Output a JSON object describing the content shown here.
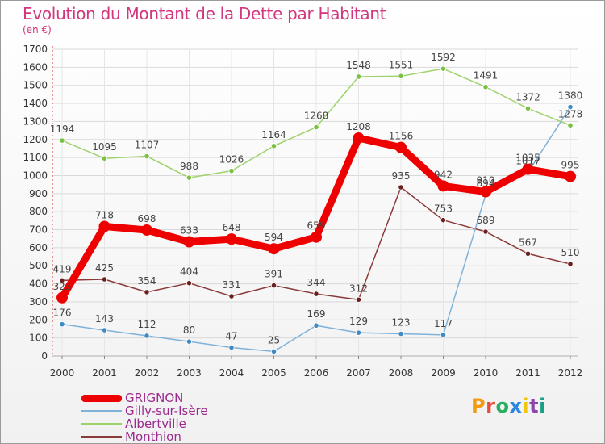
{
  "title": "Evolution du Montant de la Dette par Habitant",
  "unit": "(en €)",
  "logo": "Proxiti",
  "colors": {
    "title": "#d2367e",
    "legend_text": "#9b2b8f",
    "grid": "#d9d9d9",
    "axis_left": "#d8312f",
    "tick_text": "#333333",
    "value_text": "#444444"
  },
  "chart_data": {
    "type": "line",
    "title": "Evolution du Montant de la Dette par Habitant",
    "xlabel": "",
    "ylabel": "(en €)",
    "ylim": [
      0,
      1700
    ],
    "yticks": [
      0,
      100,
      200,
      300,
      400,
      500,
      600,
      700,
      800,
      900,
      1000,
      1100,
      1200,
      1300,
      1400,
      1500,
      1600,
      1700
    ],
    "grid": true,
    "legend_position": "bottom-left",
    "categories": [
      "2000",
      "2001",
      "2002",
      "2003",
      "2004",
      "2005",
      "2006",
      "2007",
      "2008",
      "2009",
      "2010",
      "2011",
      "2012"
    ],
    "series": [
      {
        "name": "Albertville",
        "color": "#9ed36b",
        "marker": "#7ac143",
        "values": [
          1194,
          1095,
          1107,
          988,
          1026,
          1164,
          1268,
          1548,
          1551,
          1592,
          1491,
          1372,
          1278
        ]
      },
      {
        "name": "Monthion",
        "color": "#8b3a3a",
        "marker": "#6b1f1f",
        "values": [
          419,
          425,
          354,
          404,
          331,
          391,
          344,
          312,
          935,
          753,
          689,
          567,
          510
        ]
      },
      {
        "name": "Gilly-sur-Isère",
        "color": "#7fb2d9",
        "marker": "#3d8ac4",
        "values": [
          176,
          143,
          112,
          80,
          47,
          25,
          169,
          129,
          123,
          117,
          894,
          1017,
          1380
        ]
      },
      {
        "name": "GRIGNON",
        "color": "#ee0000",
        "marker": "#ee0000",
        "values": [
          323,
          718,
          698,
          633,
          648,
          594,
          659,
          1208,
          1156,
          942,
          910,
          1035,
          995
        ]
      }
    ],
    "data_labels": {
      "Albertville": [
        "1194",
        "1095",
        "1107",
        "988",
        "1026",
        "1164",
        "1268",
        "1548",
        "1551",
        "1592",
        "1491",
        "1372",
        "1278"
      ],
      "Monthion": [
        "419",
        "425",
        "354",
        "404",
        "331",
        "391",
        "344",
        "312",
        "935",
        "753",
        "689",
        "567",
        "510"
      ],
      "Gilly-sur-Isère": [
        "176",
        "143",
        "112",
        "80",
        "47",
        "25",
        "169",
        "129",
        "123",
        "117",
        "894",
        "1017",
        "1380"
      ],
      "GRIGNON": [
        "323",
        "718",
        "698",
        "633",
        "648",
        "594",
        "659",
        "1208",
        "1156",
        "942",
        "910",
        "1035",
        "995"
      ]
    }
  },
  "legend": [
    {
      "label": "GRIGNON",
      "color": "#ee0000",
      "thickness": 9
    },
    {
      "label": "Gilly-sur-Isère",
      "color": "#7fb2d9",
      "thickness": 2
    },
    {
      "label": "Albertville",
      "color": "#9ed36b",
      "thickness": 2
    },
    {
      "label": "Monthion",
      "color": "#8b3a3a",
      "thickness": 2
    }
  ]
}
